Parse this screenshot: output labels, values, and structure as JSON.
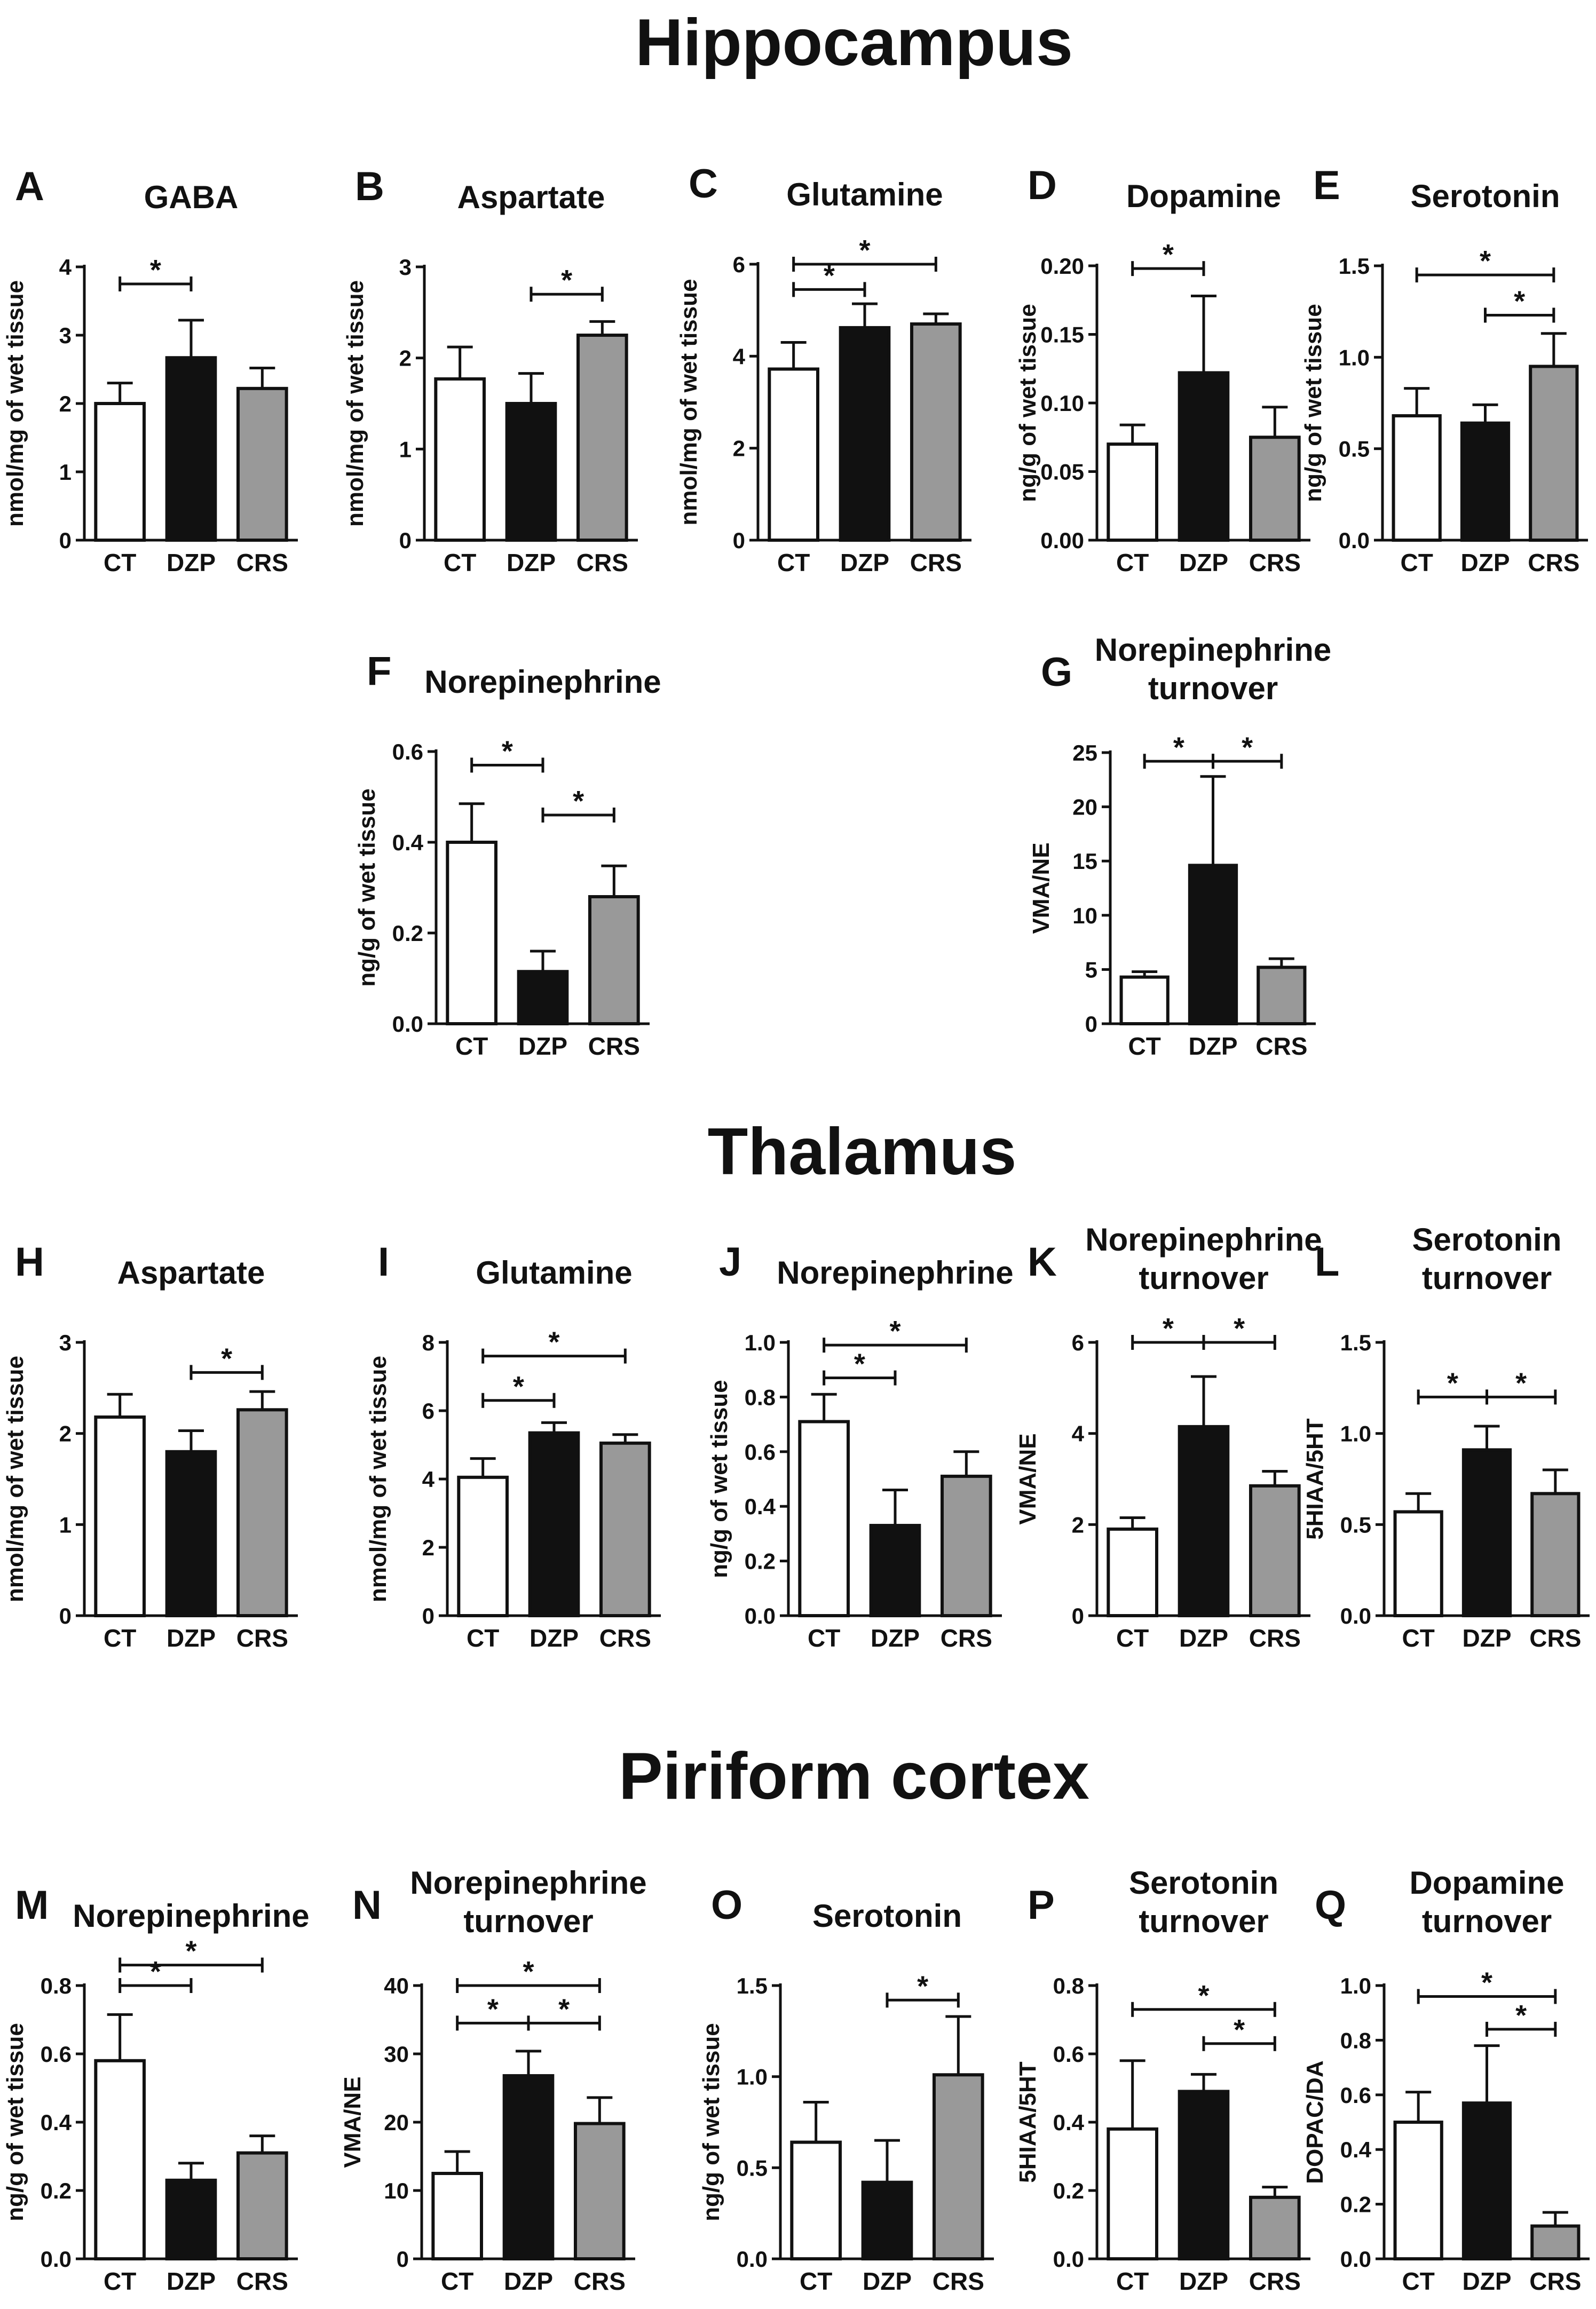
{
  "figure": {
    "sections": [
      "Hippocampus",
      "Thalamus",
      "Piriform cortex"
    ],
    "colors": {
      "CT": "#ffffff",
      "DZP": "#111111",
      "CRS": "#999999"
    }
  },
  "chart_data": [
    {
      "id": "A",
      "section": "Hippocampus",
      "type": "bar",
      "title": [
        "GABA"
      ],
      "ylabel": "nmol/mg of wet tissue",
      "categories": [
        "CT",
        "DZP",
        "CRS"
      ],
      "values": [
        2.0,
        2.67,
        2.22
      ],
      "errors": [
        0.3,
        0.55,
        0.3
      ],
      "ylim": [
        0,
        4
      ],
      "yticks": [
        "0",
        "1",
        "2",
        "3",
        "4"
      ],
      "significance": [
        {
          "from": "CT",
          "to": "DZP",
          "label": "*",
          "y": 3.75
        }
      ]
    },
    {
      "id": "B",
      "section": "Hippocampus",
      "type": "bar",
      "title": [
        "Aspartate"
      ],
      "ylabel": "nmol/mg of wet tissue",
      "categories": [
        "CT",
        "DZP",
        "CRS"
      ],
      "values": [
        1.77,
        1.5,
        2.25
      ],
      "errors": [
        0.35,
        0.33,
        0.15
      ],
      "ylim": [
        0,
        3
      ],
      "yticks": [
        "0",
        "1",
        "2",
        "3"
      ],
      "significance": [
        {
          "from": "DZP",
          "to": "CRS",
          "label": "*",
          "y": 2.7
        }
      ]
    },
    {
      "id": "C",
      "section": "Hippocampus",
      "type": "bar",
      "title": [
        "Glutamine"
      ],
      "ylabel": "nmol/mg of wet tissue",
      "categories": [
        "CT",
        "DZP",
        "CRS"
      ],
      "values": [
        3.72,
        4.62,
        4.7
      ],
      "errors": [
        0.58,
        0.52,
        0.22
      ],
      "ylim": [
        0,
        6
      ],
      "yticks": [
        "0",
        "2",
        "4",
        "6"
      ],
      "significance": [
        {
          "from": "CT",
          "to": "DZP",
          "label": "*",
          "y": 5.45
        },
        {
          "from": "CT",
          "to": "CRS",
          "label": "*",
          "y": 6.0
        }
      ]
    },
    {
      "id": "D",
      "section": "Hippocampus",
      "type": "bar",
      "title": [
        "Dopamine"
      ],
      "ylabel": "ng/g of wet tissue",
      "categories": [
        "CT",
        "DZP",
        "CRS"
      ],
      "values": [
        0.07,
        0.122,
        0.075
      ],
      "errors": [
        0.014,
        0.056,
        0.022
      ],
      "ylim": [
        0,
        0.2
      ],
      "yticks": [
        "0.00",
        "0.05",
        "0.10",
        "0.15",
        "0.20"
      ],
      "significance": [
        {
          "from": "CT",
          "to": "DZP",
          "label": "*",
          "y": 0.198
        }
      ]
    },
    {
      "id": "E",
      "section": "Hippocampus",
      "type": "bar",
      "title": [
        "Serotonin"
      ],
      "ylabel": "ng/g of wet tissue",
      "categories": [
        "CT",
        "DZP",
        "CRS"
      ],
      "values": [
        0.68,
        0.64,
        0.95
      ],
      "errors": [
        0.15,
        0.1,
        0.18
      ],
      "ylim": [
        0,
        1.5
      ],
      "yticks": [
        "0.0",
        "0.5",
        "1.0",
        "1.5"
      ],
      "significance": [
        {
          "from": "CT",
          "to": "CRS",
          "label": "*",
          "y": 1.45
        },
        {
          "from": "DZP",
          "to": "CRS",
          "label": "*",
          "y": 1.23
        }
      ]
    },
    {
      "id": "F",
      "section": "Hippocampus",
      "type": "bar",
      "title": [
        "Norepinephrine"
      ],
      "ylabel": "ng/g of wet tissue",
      "categories": [
        "CT",
        "DZP",
        "CRS"
      ],
      "values": [
        0.4,
        0.115,
        0.28
      ],
      "errors": [
        0.085,
        0.045,
        0.068
      ],
      "ylim": [
        0,
        0.6
      ],
      "yticks": [
        "0.0",
        "0.2",
        "0.4",
        "0.6"
      ],
      "significance": [
        {
          "from": "CT",
          "to": "DZP",
          "label": "*",
          "y": 0.57
        },
        {
          "from": "DZP",
          "to": "CRS",
          "label": "*",
          "y": 0.46
        }
      ]
    },
    {
      "id": "G",
      "section": "Hippocampus",
      "type": "bar",
      "title": [
        "Norepinephrine",
        "turnover"
      ],
      "ylabel": "VMA/NE",
      "categories": [
        "CT",
        "DZP",
        "CRS"
      ],
      "values": [
        4.3,
        14.6,
        5.2
      ],
      "errors": [
        0.5,
        8.2,
        0.8
      ],
      "ylim": [
        0,
        25
      ],
      "yticks": [
        "0",
        "5",
        "10",
        "15",
        "20",
        "25"
      ],
      "significance": [
        {
          "from": "CT",
          "to": "DZP",
          "label": "*",
          "y": 24.2
        },
        {
          "from": "DZP",
          "to": "CRS",
          "label": "*",
          "y": 24.2
        }
      ]
    },
    {
      "id": "H",
      "section": "Thalamus",
      "type": "bar",
      "title": [
        "Aspartate"
      ],
      "ylabel": "nmol/mg of wet tissue",
      "categories": [
        "CT",
        "DZP",
        "CRS"
      ],
      "values": [
        2.18,
        1.8,
        2.26
      ],
      "errors": [
        0.25,
        0.23,
        0.2
      ],
      "ylim": [
        0,
        3
      ],
      "yticks": [
        "0",
        "1",
        "2",
        "3"
      ],
      "significance": [
        {
          "from": "DZP",
          "to": "CRS",
          "label": "*",
          "y": 2.67
        }
      ]
    },
    {
      "id": "I",
      "section": "Thalamus",
      "type": "bar",
      "title": [
        "Glutamine"
      ],
      "ylabel": "nmol/mg of wet tissue",
      "categories": [
        "CT",
        "DZP",
        "CRS"
      ],
      "values": [
        4.05,
        5.35,
        5.05
      ],
      "errors": [
        0.55,
        0.3,
        0.25
      ],
      "ylim": [
        0,
        8
      ],
      "yticks": [
        "0",
        "2",
        "4",
        "6",
        "8"
      ],
      "significance": [
        {
          "from": "CT",
          "to": "DZP",
          "label": "*",
          "y": 6.3
        },
        {
          "from": "CT",
          "to": "CRS",
          "label": "*",
          "y": 7.6
        }
      ]
    },
    {
      "id": "J",
      "section": "Thalamus",
      "type": "bar",
      "title": [
        "Norepinephrine"
      ],
      "ylabel": "ng/g of wet tissue",
      "categories": [
        "CT",
        "DZP",
        "CRS"
      ],
      "values": [
        0.71,
        0.33,
        0.51
      ],
      "errors": [
        0.1,
        0.13,
        0.09
      ],
      "ylim": [
        0,
        1.0
      ],
      "yticks": [
        "0.0",
        "0.2",
        "0.4",
        "0.6",
        "0.8",
        "1.0"
      ],
      "significance": [
        {
          "from": "CT",
          "to": "DZP",
          "label": "*",
          "y": 0.87
        },
        {
          "from": "CT",
          "to": "CRS",
          "label": "*",
          "y": 0.99
        }
      ]
    },
    {
      "id": "K",
      "section": "Thalamus",
      "type": "bar",
      "title": [
        "Norepinephrine",
        "turnover"
      ],
      "ylabel": "VMA/NE",
      "categories": [
        "CT",
        "DZP",
        "CRS"
      ],
      "values": [
        1.9,
        4.15,
        2.85
      ],
      "errors": [
        0.25,
        1.1,
        0.32
      ],
      "ylim": [
        0,
        6
      ],
      "yticks": [
        "0",
        "2",
        "4",
        "6"
      ],
      "significance": [
        {
          "from": "CT",
          "to": "DZP",
          "label": "*",
          "y": 6.0
        },
        {
          "from": "DZP",
          "to": "CRS",
          "label": "*",
          "y": 6.0
        }
      ]
    },
    {
      "id": "L",
      "section": "Thalamus",
      "type": "bar",
      "title": [
        "Serotonin",
        "turnover"
      ],
      "ylabel": "5HIAA/5HT",
      "categories": [
        "CT",
        "DZP",
        "CRS"
      ],
      "values": [
        0.57,
        0.91,
        0.67
      ],
      "errors": [
        0.1,
        0.13,
        0.13
      ],
      "ylim": [
        0,
        1.5
      ],
      "yticks": [
        "0.0",
        "0.5",
        "1.0",
        "1.5"
      ],
      "significance": [
        {
          "from": "CT",
          "to": "DZP",
          "label": "*",
          "y": 1.2
        },
        {
          "from": "DZP",
          "to": "CRS",
          "label": "*",
          "y": 1.2
        }
      ]
    },
    {
      "id": "M",
      "section": "Piriform cortex",
      "type": "bar",
      "title": [
        "Norepinephrine"
      ],
      "ylabel": "ng/g of wet tissue",
      "categories": [
        "CT",
        "DZP",
        "CRS"
      ],
      "values": [
        0.58,
        0.23,
        0.31
      ],
      "errors": [
        0.135,
        0.05,
        0.05
      ],
      "ylim": [
        0,
        0.8
      ],
      "yticks": [
        "0.0",
        "0.2",
        "0.4",
        "0.6",
        "0.8"
      ],
      "significance": [
        {
          "from": "CT",
          "to": "DZP",
          "label": "*",
          "y": 0.8
        },
        {
          "from": "CT",
          "to": "CRS",
          "label": "*",
          "y": 0.86
        }
      ]
    },
    {
      "id": "N",
      "section": "Piriform cortex",
      "type": "bar",
      "title": [
        "Norepinephrine",
        "turnover"
      ],
      "ylabel": "VMA/NE",
      "categories": [
        "CT",
        "DZP",
        "CRS"
      ],
      "values": [
        12.5,
        26.8,
        19.8
      ],
      "errors": [
        3.2,
        3.6,
        3.8
      ],
      "ylim": [
        0,
        40
      ],
      "yticks": [
        "0",
        "10",
        "20",
        "30",
        "40"
      ],
      "significance": [
        {
          "from": "CT",
          "to": "DZP",
          "label": "*",
          "y": 34.5
        },
        {
          "from": "DZP",
          "to": "CRS",
          "label": "*",
          "y": 34.5
        },
        {
          "from": "CT",
          "to": "CRS",
          "label": "*",
          "y": 40.0
        }
      ]
    },
    {
      "id": "O",
      "section": "Piriform cortex",
      "type": "bar",
      "title": [
        "Serotonin"
      ],
      "ylabel": "ng/g of wet tissue",
      "categories": [
        "CT",
        "DZP",
        "CRS"
      ],
      "values": [
        0.64,
        0.42,
        1.01
      ],
      "errors": [
        0.22,
        0.23,
        0.32
      ],
      "ylim": [
        0,
        1.5
      ],
      "yticks": [
        "0.0",
        "0.5",
        "1.0",
        "1.5"
      ],
      "significance": [
        {
          "from": "DZP",
          "to": "CRS",
          "label": "*",
          "y": 1.42
        }
      ]
    },
    {
      "id": "P",
      "section": "Piriform cortex",
      "type": "bar",
      "title": [
        "Serotonin",
        "turnover"
      ],
      "ylabel": "5HIAA/5HT",
      "categories": [
        "CT",
        "DZP",
        "CRS"
      ],
      "values": [
        0.38,
        0.49,
        0.18
      ],
      "errors": [
        0.2,
        0.05,
        0.03
      ],
      "ylim": [
        0,
        0.8
      ],
      "yticks": [
        "0.0",
        "0.2",
        "0.4",
        "0.6",
        "0.8"
      ],
      "significance": [
        {
          "from": "CT",
          "to": "CRS",
          "label": "*",
          "y": 0.73
        },
        {
          "from": "DZP",
          "to": "CRS",
          "label": "*",
          "y": 0.63
        }
      ]
    },
    {
      "id": "Q",
      "section": "Piriform cortex",
      "type": "bar",
      "title": [
        "Dopamine",
        "turnover"
      ],
      "ylabel": "DOPAC/DA",
      "categories": [
        "CT",
        "DZP",
        "CRS"
      ],
      "values": [
        0.5,
        0.57,
        0.12
      ],
      "errors": [
        0.11,
        0.21,
        0.05
      ],
      "ylim": [
        0,
        1.0
      ],
      "yticks": [
        "0.0",
        "0.2",
        "0.4",
        "0.6",
        "0.8",
        "1.0"
      ],
      "significance": [
        {
          "from": "CT",
          "to": "CRS",
          "label": "*",
          "y": 0.96
        },
        {
          "from": "DZP",
          "to": "CRS",
          "label": "*",
          "y": 0.84
        }
      ]
    }
  ]
}
